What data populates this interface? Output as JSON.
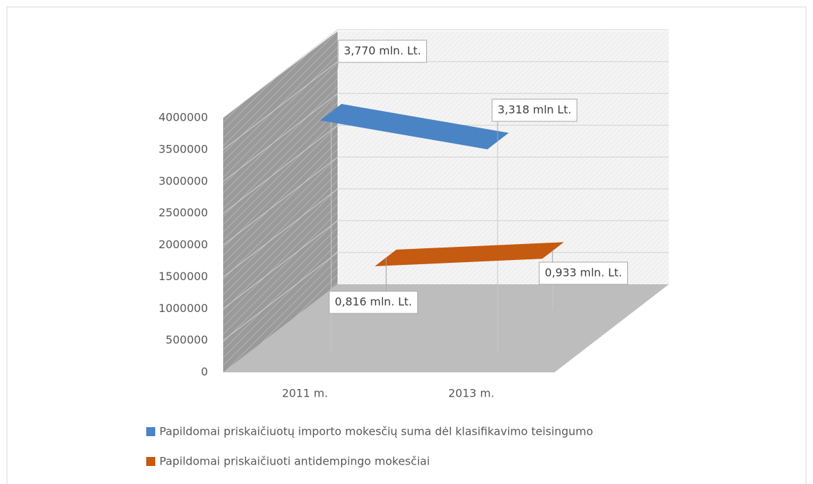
{
  "chart_data": {
    "type": "line3d",
    "categories": [
      "2011 m.",
      "2013 m."
    ],
    "series": [
      {
        "name": "Papildomai priskaičiuotų importo mokesčių suma dėl klasifikavimo teisingumo",
        "color": "#4a84c4",
        "values": [
          3770000,
          3318000
        ],
        "value_labels": [
          "3,770 mln. Lt.",
          "3,318 mln Lt."
        ]
      },
      {
        "name": "Papildomai priskaičiuoti antidempingo mokesčiai",
        "color": "#c55a11",
        "values": [
          816000,
          933000
        ],
        "value_labels": [
          "0,816 mln. Lt.",
          "0,933 mln. Lt."
        ]
      }
    ],
    "ylim": [
      0,
      4000000
    ],
    "yticks": [
      0,
      500000,
      1000000,
      1500000,
      2000000,
      2500000,
      3000000,
      3500000,
      4000000
    ],
    "grid": true,
    "legend": "bottom"
  }
}
